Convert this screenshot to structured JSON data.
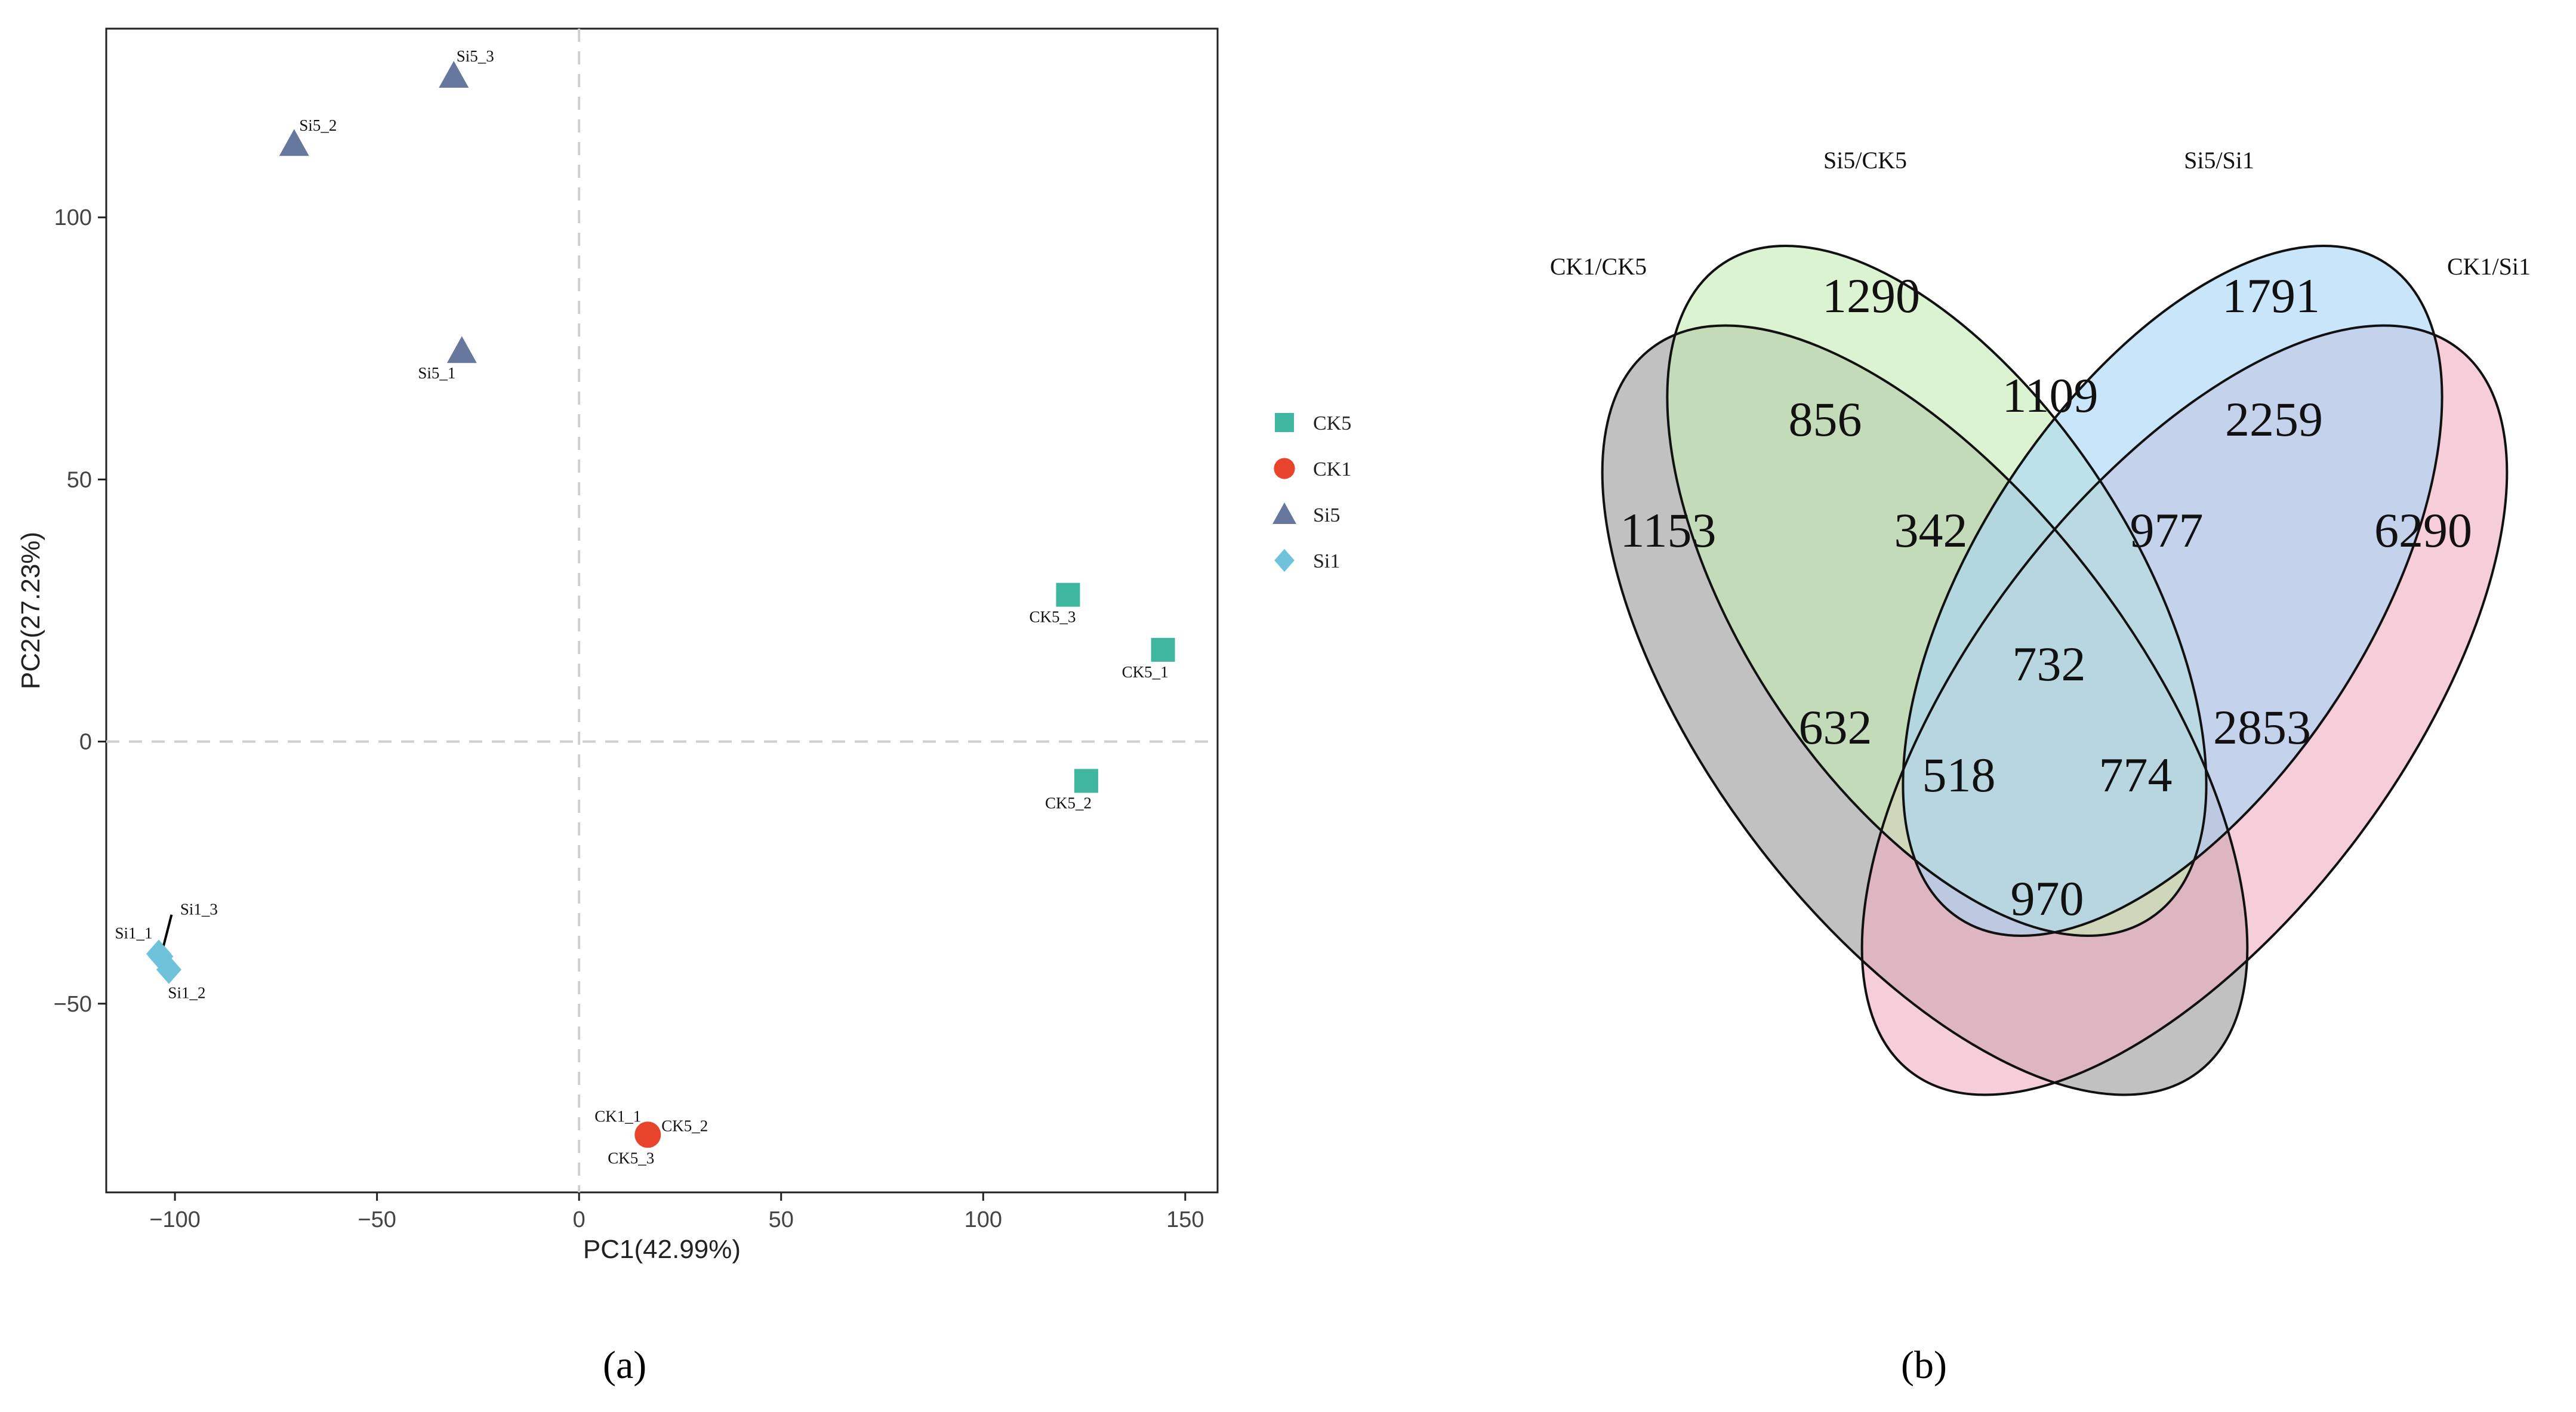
{
  "chart_data": [
    {
      "type": "scatter",
      "panel_label": "(a)",
      "xlabel": "PC1(42.99%)",
      "ylabel": "PC2(27.23%)",
      "xlim": [
        -117,
        158
      ],
      "ylim": [
        -86,
        136
      ],
      "xticks": [
        -100,
        -50,
        0,
        50,
        100,
        150
      ],
      "yticks": [
        -50,
        0,
        50,
        100
      ],
      "xtick_labels": [
        "−100",
        "−50",
        "0",
        "50",
        "100",
        "150"
      ],
      "ytick_labels": [
        "−50",
        "0",
        "50",
        "100"
      ],
      "reference_lines": {
        "x": 0,
        "y": 0
      },
      "legend": [
        {
          "label": "CK5",
          "shape": "square",
          "color": "#3fb69f"
        },
        {
          "label": "CK1",
          "shape": "circle",
          "color": "#e8442c"
        },
        {
          "label": "Si5",
          "shape": "triangle",
          "color": "#67789f"
        },
        {
          "label": "Si1",
          "shape": "diamond",
          "color": "#6ec3da"
        }
      ],
      "series": [
        {
          "name": "CK5",
          "points": [
            {
              "label": "CK5_3",
              "x": 121,
              "y": 28
            },
            {
              "label": "CK5_1",
              "x": 144.5,
              "y": 17.5
            },
            {
              "label": "CK5_2",
              "x": 125.5,
              "y": -7.5
            }
          ]
        },
        {
          "name": "CK1",
          "points": [
            {
              "label": "CK1_1",
              "x": 17,
              "y": -75
            }
          ]
        },
        {
          "name": "Si5",
          "points": [
            {
              "label": "Si5_3",
              "x": -31,
              "y": 127
            },
            {
              "label": "Si5_2",
              "x": -70.5,
              "y": 114
            },
            {
              "label": "Si5_1",
              "x": -29,
              "y": 74.5
            }
          ]
        },
        {
          "name": "Si1",
          "points": [
            {
              "label": "Si1_1",
              "x": -104,
              "y": -40.5
            },
            {
              "label": "Si1_3",
              "x": -103.5,
              "y": -41
            },
            {
              "label": "Si1_2",
              "x": -101.5,
              "y": -43.5
            }
          ]
        }
      ],
      "extra_labels": [
        "CK5_2",
        "CK5_3"
      ]
    },
    {
      "type": "venn",
      "panel_label": "(b)",
      "sets": [
        {
          "name": "CK1/CK5",
          "color": "#9b9b9b"
        },
        {
          "name": "Si5/CK5",
          "color": "#c7ecb7"
        },
        {
          "name": "Si5/Si1",
          "color": "#a8d5f5"
        },
        {
          "name": "CK1/Si1",
          "color": "#efb0c2"
        }
      ],
      "regions": [
        {
          "sets": [
            "CK1/CK5"
          ],
          "value": 1153
        },
        {
          "sets": [
            "Si5/CK5"
          ],
          "value": 1290
        },
        {
          "sets": [
            "Si5/Si1"
          ],
          "value": 1791
        },
        {
          "sets": [
            "CK1/Si1"
          ],
          "value": 6290
        },
        {
          "sets": [
            "CK1/CK5",
            "Si5/CK5"
          ],
          "value": 856
        },
        {
          "sets": [
            "Si5/CK5",
            "Si5/Si1"
          ],
          "value": 1109
        },
        {
          "sets": [
            "Si5/Si1",
            "CK1/Si1"
          ],
          "value": 2259
        },
        {
          "sets": [
            "CK1/CK5",
            "Si5/CK5",
            "Si5/Si1"
          ],
          "value": 342
        },
        {
          "sets": [
            "Si5/CK5",
            "Si5/Si1",
            "CK1/Si1"
          ],
          "value": 977
        },
        {
          "sets": [
            "CK1/CK5",
            "Si5/CK5",
            "Si5/Si1",
            "CK1/Si1"
          ],
          "value": 732
        },
        {
          "sets": [
            "CK1/CK5",
            "Si5/Si1"
          ],
          "value": 632
        },
        {
          "sets": [
            "Si5/CK5",
            "CK1/Si1"
          ],
          "value": 2853
        },
        {
          "sets": [
            "CK1/CK5",
            "Si5/Si1",
            "CK1/Si1"
          ],
          "value": 518
        },
        {
          "sets": [
            "CK1/CK5",
            "Si5/CK5",
            "CK1/Si1"
          ],
          "value": 774
        },
        {
          "sets": [
            "CK1/CK5",
            "CK1/Si1"
          ],
          "value": 970
        }
      ]
    }
  ]
}
